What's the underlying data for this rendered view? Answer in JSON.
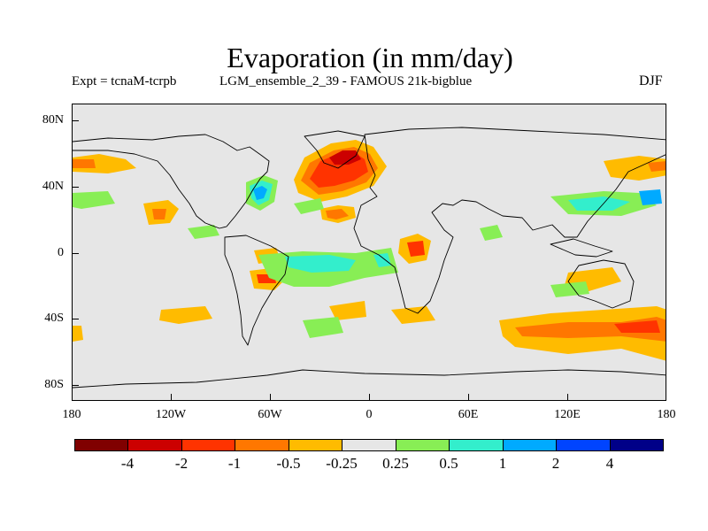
{
  "title": "Evaporation (in mm/day)",
  "subtitle_left": "Expt = tcnaM-tcrpb",
  "subtitle_mid": "LGM_ensemble_2_39 - FAMOUS 21k-bigblue",
  "season": "DJF",
  "y_axis_labels": [
    "80N",
    "40N",
    "0",
    "40S",
    "80S"
  ],
  "x_axis_labels": [
    "180",
    "120W",
    "60W",
    "0",
    "60E",
    "120E",
    "180"
  ],
  "colorbar": {
    "labels": [
      "-4",
      "-2",
      "-1",
      "-0.5",
      "-0.25",
      "0.25",
      "0.5",
      "1",
      "2",
      "4"
    ],
    "colors": [
      "#800000",
      "#cc0000",
      "#ff3300",
      "#ff7700",
      "#ffbb00",
      "#e6e6e6",
      "#88ee55",
      "#33eecc",
      "#00aaff",
      "#0044ff",
      "#000088"
    ]
  },
  "map_colors": {
    "ocean_background": "#e6e6e6",
    "coast": "#000000"
  }
}
